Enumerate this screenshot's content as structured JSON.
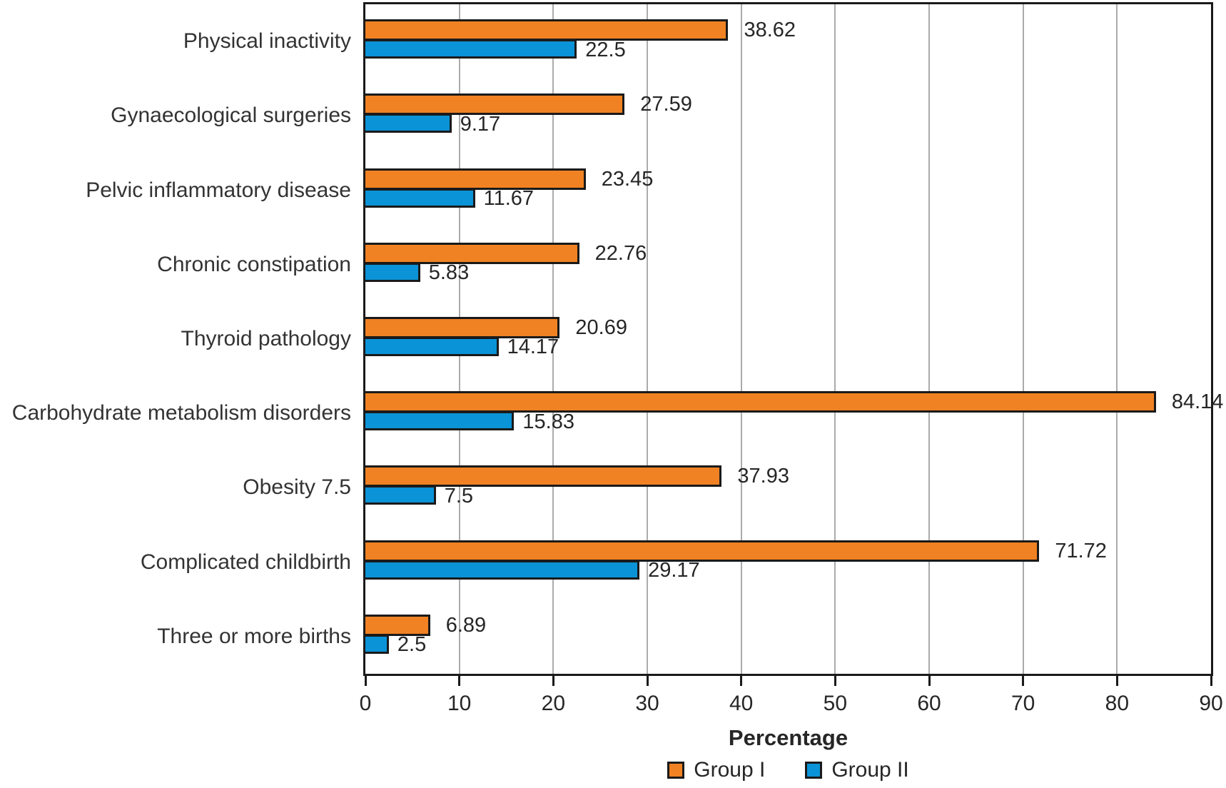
{
  "figure": {
    "xlabel": "Percentage"
  },
  "chart_data": {
    "type": "bar",
    "orientation": "horizontal",
    "title": "",
    "xlabel": "Percentage",
    "ylabel": "",
    "xlim": [
      0,
      90
    ],
    "xticks": [
      0,
      10,
      20,
      30,
      40,
      50,
      60,
      70,
      80,
      90
    ],
    "grid": true,
    "legend_position": "bottom",
    "categories": [
      "Physical inactivity",
      "Gynaecological surgeries",
      "Pelvic inflammatory disease",
      "Chronic constipation",
      "Thyroid pathology",
      "Carbohydrate metabolism disorders",
      "Obesity 7.5",
      "Complicated childbirth",
      "Three or more births"
    ],
    "series": [
      {
        "name": "Group I",
        "color": "#F08223",
        "values": [
          38.62,
          27.59,
          23.45,
          22.76,
          20.69,
          84.14,
          37.93,
          71.72,
          6.89
        ],
        "labels": [
          "38.62",
          "27.59",
          "23.45",
          "22.76",
          "20.69",
          "84.14",
          "37.93",
          "71.72",
          "6.89"
        ]
      },
      {
        "name": "Group II",
        "color": "#0B93D7",
        "values": [
          22.5,
          9.17,
          11.67,
          5.83,
          14.17,
          15.83,
          7.5,
          29.17,
          2.5
        ],
        "labels": [
          "22.5",
          "9.17",
          "11.67",
          "5.83",
          "14.17",
          "15.83",
          "7.5",
          "29.17",
          "2.5"
        ]
      }
    ],
    "colors": {
      "group1": "#F08223",
      "group2": "#0B93D7",
      "bar_border": "#1a1a1a",
      "gridline": "#ababab",
      "text": "#262626"
    }
  }
}
